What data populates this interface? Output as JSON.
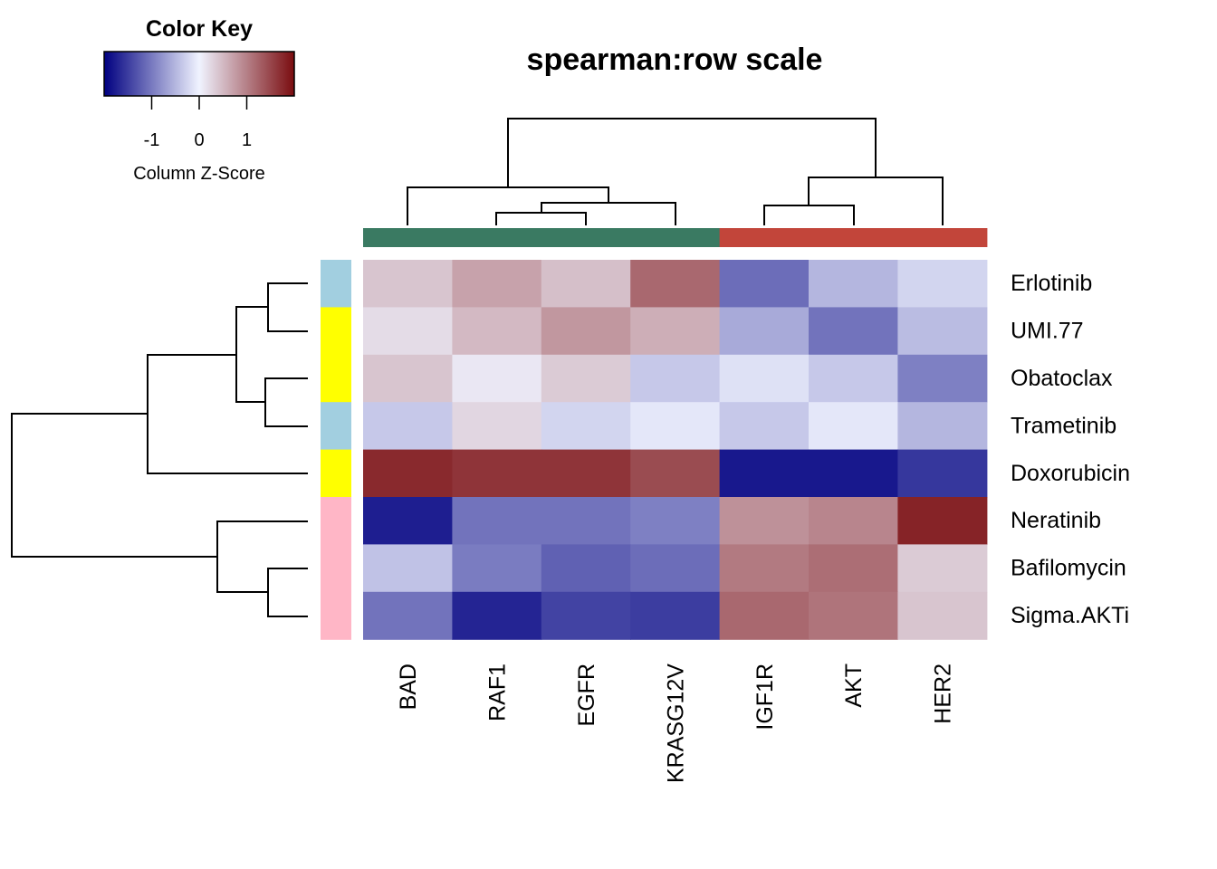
{
  "chart_data": {
    "type": "heatmap",
    "title": "spearman:row scale",
    "columns": [
      "BAD",
      "RAF1",
      "EGFR",
      "KRASG12V",
      "IGF1R",
      "AKT",
      "HER2"
    ],
    "rows": [
      "Erlotinib",
      "UMI.77",
      "Obatoclax",
      "Trametinib",
      "Doxorubicin",
      "Neratinib",
      "Bafilomycin",
      "Sigma.AKTi"
    ],
    "values": [
      [
        0.4,
        0.7,
        0.45,
        1.2,
        -1.1,
        -0.5,
        -0.25
      ],
      [
        0.2,
        0.5,
        0.8,
        0.6,
        -0.6,
        -1.05,
        -0.45
      ],
      [
        0.4,
        0.1,
        0.35,
        -0.35,
        -0.15,
        -0.35,
        -0.95
      ],
      [
        -0.35,
        0.25,
        -0.25,
        -0.1,
        -0.35,
        -0.1,
        -0.5
      ],
      [
        1.75,
        1.65,
        1.65,
        1.45,
        -1.8,
        -1.8,
        -1.55
      ],
      [
        -1.75,
        -1.05,
        -1.05,
        -0.95,
        0.85,
        0.95,
        1.8
      ],
      [
        -0.4,
        -0.98,
        -1.2,
        -1.1,
        1.05,
        1.15,
        0.35
      ],
      [
        -1.05,
        -1.7,
        -1.45,
        -1.5,
        1.2,
        1.1,
        0.4
      ]
    ],
    "column_groups": [
      "#3a7a62",
      "#3a7a62",
      "#3a7a62",
      "#3a7a62",
      "#c2453a",
      "#c2453a",
      "#c2453a"
    ],
    "row_groups": [
      "#a2cfe0",
      "#ffff00",
      "#ffff00",
      "#a2cfe0",
      "#ffff00",
      "#ffb6c6",
      "#ffb6c6",
      "#ffb6c6"
    ],
    "color_scale": {
      "low": "#000080",
      "mid": "#f0f3ff",
      "high": "#7a0c0f",
      "range": [
        -2,
        2
      ]
    },
    "color_key": {
      "title": "Color Key",
      "xlabel": "Column Z-Score",
      "ticks": [
        -1,
        0,
        1
      ],
      "tick_labels": [
        "-1",
        "0",
        "1"
      ]
    }
  }
}
